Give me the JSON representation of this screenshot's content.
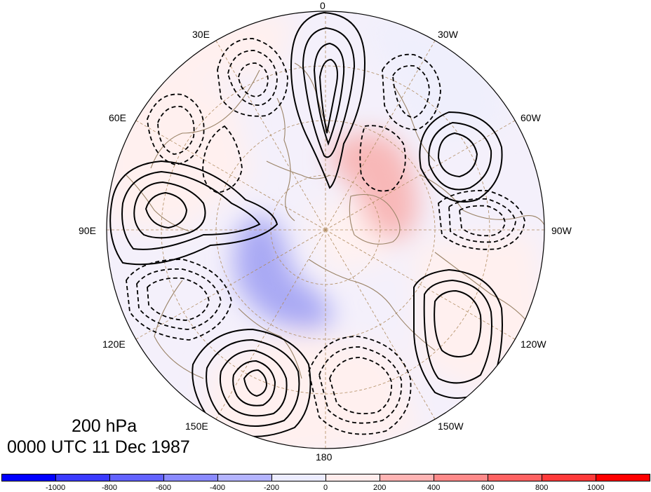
{
  "titles": {
    "level": "200 hPa",
    "datetime": "0000 UTC 11 Dec 1987"
  },
  "longitude_labels": [
    "0",
    "30W",
    "60W",
    "90W",
    "120W",
    "150W",
    "180",
    "150E",
    "120E",
    "90E",
    "60E",
    "30E"
  ],
  "colorbar": {
    "ticks": [
      "-1000",
      "-800",
      "-600",
      "-400",
      "-200",
      "0",
      "200",
      "400",
      "600",
      "800",
      "1000"
    ],
    "colors": [
      "#0000ff",
      "#3a3aff",
      "#6262ff",
      "#8a8aff",
      "#b4b4ff",
      "#ececff",
      "#ffecec",
      "#ffb4b4",
      "#ff8a8a",
      "#ff6262",
      "#ff3a3a",
      "#ff0000"
    ]
  },
  "colors": {
    "coastline": "#9b8468",
    "gridline": "#b08c60",
    "contour": "#000000"
  }
}
